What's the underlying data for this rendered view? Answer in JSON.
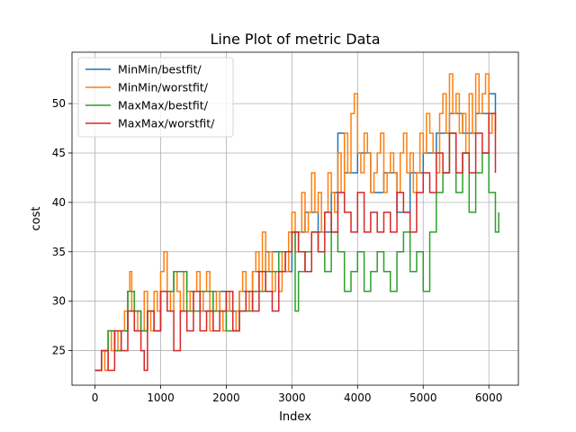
{
  "chart_data": {
    "type": "line",
    "title": "Line Plot of metric Data",
    "xlabel": "Index",
    "ylabel": "cost",
    "xlim": [
      -350,
      6450
    ],
    "ylim": [
      21.5,
      55.2
    ],
    "xticks": [
      0,
      1000,
      2000,
      3000,
      4000,
      5000,
      6000
    ],
    "yticks": [
      25,
      30,
      35,
      40,
      45,
      50
    ],
    "grid": true,
    "legend_position": "top-left",
    "series": [
      {
        "name": "MinMin/bestfit/",
        "color": "#1f77b4",
        "x": [
          0,
          100,
          200,
          300,
          400,
          500,
          600,
          700,
          800,
          900,
          1000,
          1200,
          1400,
          1600,
          1800,
          2000,
          2200,
          2400,
          2600,
          2800,
          3000,
          3200,
          3400,
          3600,
          3700,
          3800,
          4000,
          4200,
          4400,
          4600,
          4800,
          5000,
          5200,
          5400,
          5600,
          5800,
          6000,
          6100
        ],
        "y": [
          23,
          25,
          27,
          25,
          27,
          31,
          29,
          27,
          29,
          27,
          31,
          33,
          31,
          29,
          31,
          29,
          31,
          33,
          35,
          33,
          37,
          39,
          37,
          41,
          47,
          43,
          45,
          41,
          43,
          39,
          43,
          45,
          47,
          49,
          47,
          49,
          51,
          49
        ]
      },
      {
        "name": "MinMin/worstfit/",
        "color": "#ff7f0e",
        "x": [
          0,
          50,
          100,
          150,
          200,
          250,
          300,
          350,
          400,
          450,
          500,
          530,
          560,
          600,
          650,
          700,
          750,
          800,
          850,
          900,
          950,
          1000,
          1050,
          1100,
          1150,
          1200,
          1250,
          1300,
          1350,
          1400,
          1450,
          1500,
          1550,
          1600,
          1650,
          1700,
          1750,
          1800,
          1850,
          1900,
          1950,
          2000,
          2050,
          2100,
          2150,
          2200,
          2250,
          2300,
          2350,
          2400,
          2450,
          2500,
          2550,
          2600,
          2650,
          2700,
          2750,
          2800,
          2850,
          2900,
          2950,
          3000,
          3050,
          3100,
          3150,
          3200,
          3250,
          3300,
          3350,
          3400,
          3450,
          3500,
          3550,
          3600,
          3650,
          3700,
          3750,
          3800,
          3850,
          3900,
          3950,
          4000,
          4050,
          4100,
          4150,
          4200,
          4250,
          4300,
          4350,
          4400,
          4450,
          4500,
          4550,
          4600,
          4650,
          4700,
          4750,
          4800,
          4850,
          4900,
          4950,
          5000,
          5050,
          5100,
          5150,
          5200,
          5250,
          5300,
          5350,
          5400,
          5450,
          5500,
          5550,
          5600,
          5650,
          5700,
          5750,
          5800,
          5850,
          5900,
          5950,
          6000,
          6050,
          6100
        ],
        "y": [
          23,
          23,
          25,
          23,
          27,
          25,
          27,
          25,
          27,
          29,
          31,
          33,
          29,
          27,
          29,
          27,
          31,
          29,
          27,
          31,
          29,
          33,
          35,
          31,
          29,
          33,
          31,
          29,
          33,
          31,
          29,
          31,
          33,
          29,
          31,
          33,
          27,
          29,
          31,
          29,
          27,
          29,
          31,
          27,
          29,
          31,
          33,
          29,
          31,
          33,
          35,
          31,
          37,
          33,
          35,
          31,
          33,
          31,
          35,
          33,
          37,
          39,
          35,
          37,
          41,
          37,
          39,
          43,
          39,
          41,
          37,
          39,
          43,
          41,
          39,
          45,
          41,
          47,
          43,
          49,
          51,
          45,
          43,
          47,
          45,
          41,
          43,
          45,
          47,
          41,
          43,
          45,
          43,
          41,
          45,
          47,
          43,
          45,
          41,
          43,
          47,
          45,
          49,
          47,
          45,
          43,
          49,
          51,
          47,
          53,
          49,
          51,
          47,
          49,
          45,
          51,
          47,
          53,
          49,
          51,
          53,
          47,
          49,
          47
        ],
        "series_note": ""
      },
      {
        "name": "MaxMax/bestfit/",
        "color": "#2ca02c",
        "x": [
          0,
          100,
          200,
          300,
          400,
          500,
          600,
          700,
          800,
          900,
          1000,
          1200,
          1400,
          1600,
          1800,
          2000,
          2200,
          2400,
          2600,
          2800,
          3000,
          3050,
          3100,
          3200,
          3300,
          3400,
          3500,
          3600,
          3700,
          3800,
          3900,
          4000,
          4100,
          4200,
          4300,
          4400,
          4500,
          4600,
          4700,
          4800,
          4900,
          5000,
          5100,
          5200,
          5300,
          5400,
          5500,
          5600,
          5700,
          5800,
          5900,
          6000,
          6100,
          6150
        ],
        "y": [
          23,
          25,
          27,
          25,
          27,
          31,
          29,
          27,
          29,
          27,
          31,
          33,
          29,
          31,
          29,
          27,
          29,
          31,
          33,
          35,
          37,
          29,
          33,
          35,
          37,
          35,
          33,
          37,
          35,
          31,
          33,
          35,
          31,
          33,
          35,
          33,
          31,
          35,
          37,
          33,
          35,
          31,
          37,
          41,
          43,
          47,
          41,
          45,
          39,
          43,
          45,
          41,
          37,
          39
        ]
      },
      {
        "name": "MaxMax/worstfit/",
        "color": "#d62728",
        "x": [
          0,
          100,
          200,
          300,
          400,
          500,
          600,
          700,
          750,
          800,
          900,
          1000,
          1100,
          1200,
          1300,
          1400,
          1500,
          1600,
          1700,
          1800,
          1900,
          2000,
          2100,
          2200,
          2300,
          2400,
          2500,
          2600,
          2700,
          2800,
          2900,
          3000,
          3100,
          3200,
          3300,
          3400,
          3500,
          3600,
          3700,
          3800,
          3900,
          4000,
          4100,
          4200,
          4300,
          4400,
          4500,
          4600,
          4700,
          4800,
          4900,
          5000,
          5100,
          5200,
          5300,
          5400,
          5500,
          5600,
          5700,
          5800,
          5900,
          6000,
          6100
        ],
        "y": [
          23,
          25,
          23,
          27,
          25,
          29,
          27,
          25,
          23,
          29,
          27,
          31,
          29,
          25,
          29,
          27,
          31,
          27,
          29,
          27,
          29,
          31,
          27,
          29,
          31,
          29,
          33,
          31,
          29,
          33,
          35,
          37,
          35,
          33,
          37,
          35,
          39,
          37,
          41,
          39,
          37,
          41,
          37,
          39,
          37,
          39,
          37,
          41,
          39,
          37,
          41,
          43,
          41,
          45,
          43,
          47,
          43,
          45,
          43,
          47,
          45,
          49,
          43
        ]
      }
    ]
  }
}
